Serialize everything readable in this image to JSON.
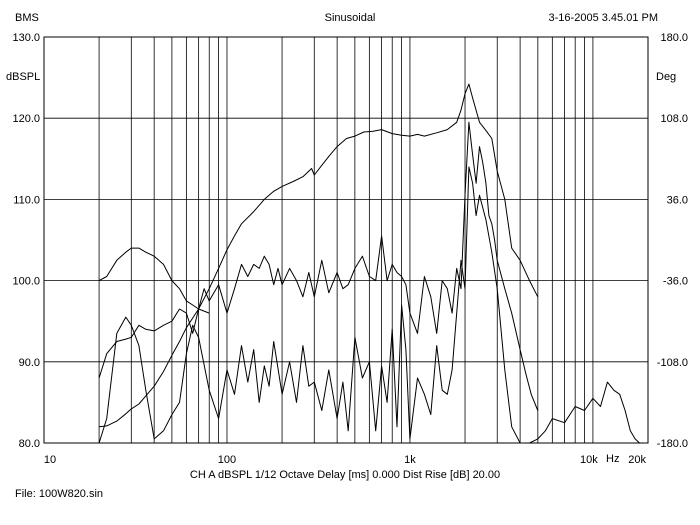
{
  "header": {
    "left": "BMS",
    "center": "Sinusoidal",
    "right": "3-16-2005 3.45.01 PM"
  },
  "footer": {
    "settings": "CH A   dBSPL   1/12 Octave   Delay [ms] 0.000   Dist Rise [dB] 20.00",
    "file": "File: 100W820.sin"
  },
  "chart_data": {
    "type": "line",
    "xscale": "log",
    "xlim": [
      10,
      20000
    ],
    "ylim": [
      80,
      130
    ],
    "ylim_right": [
      -180,
      180
    ],
    "ylabel": "dBSPL",
    "ylabel_right": "Deg",
    "x_unit": "Hz",
    "grid": true,
    "x_tick_labels": [
      {
        "value": 10,
        "label": "10"
      },
      {
        "value": 100,
        "label": "100"
      },
      {
        "value": 1000,
        "label": "1k"
      },
      {
        "value": 10000,
        "label": "10k"
      },
      {
        "value": 20000,
        "label": "20k"
      }
    ],
    "y_tick_labels": [
      "80.0",
      "90.0",
      "100.0",
      "110.0",
      "120.0",
      "130.0"
    ],
    "y_tick_values": [
      80,
      90,
      100,
      110,
      120,
      130
    ],
    "y_right_tick_labels": [
      "-180.0",
      "-108.0",
      "-36.0",
      "36.0",
      "108.0",
      "180.0"
    ],
    "y_right_tick_values": [
      -180,
      -108,
      -36,
      36,
      108,
      180
    ],
    "series": [
      {
        "key": "spl",
        "x": [
          20,
          22,
          25,
          28,
          30,
          33,
          36,
          40,
          45,
          50,
          55,
          60,
          70,
          80,
          90,
          100,
          110,
          120,
          140,
          160,
          180,
          200,
          230,
          260,
          290,
          300,
          330,
          360,
          400,
          450,
          500,
          560,
          630,
          700,
          800,
          900,
          1000,
          1100,
          1200,
          1400,
          1600,
          1800,
          1900,
          2000,
          2100,
          2200,
          2400,
          2600,
          2800,
          3000,
          3300,
          3600,
          4000,
          4500,
          5000
        ],
        "y": [
          82.0,
          82.1,
          82.7,
          83.6,
          84.2,
          84.8,
          85.8,
          87.0,
          88.8,
          90.8,
          92.5,
          94.2,
          96.5,
          99.0,
          101.5,
          103.8,
          105.5,
          107.0,
          108.5,
          110.0,
          111.0,
          111.6,
          112.2,
          112.8,
          113.8,
          113.0,
          114.2,
          115.3,
          116.5,
          117.5,
          117.8,
          118.3,
          118.4,
          118.6,
          118.1,
          117.9,
          117.8,
          118.0,
          117.8,
          118.2,
          118.6,
          119.5,
          121.0,
          123.0,
          124.2,
          122.5,
          119.5,
          118.5,
          117.5,
          113.5,
          110.0,
          104.0,
          102.5,
          100.0,
          98.0
        ]
      },
      {
        "key": "phase",
        "x": [
          20,
          22,
          25,
          28,
          30,
          33,
          36,
          40,
          45,
          50,
          55,
          60,
          65,
          70,
          80
        ],
        "y": [
          100.0,
          100.5,
          102.5,
          103.5,
          104.0,
          104.0,
          103.5,
          103.0,
          102.0,
          100.0,
          99.0,
          97.5,
          97.0,
          96.5,
          96.0
        ]
      },
      {
        "key": "h2",
        "x": [
          20,
          22,
          25,
          28,
          30,
          33,
          36,
          40,
          45,
          50,
          55,
          60,
          65,
          70,
          75,
          80,
          90,
          100,
          110,
          120,
          130,
          140,
          150,
          160,
          170,
          180,
          190,
          200,
          220,
          240,
          260,
          280,
          300,
          330,
          360,
          400,
          430,
          460,
          500,
          550,
          600,
          650,
          700,
          750,
          800,
          850,
          900,
          950,
          1000,
          1100,
          1200,
          1300,
          1400,
          1500,
          1600,
          1700,
          1800,
          1900,
          2000,
          2100,
          2200,
          2300,
          2400,
          2500,
          2600,
          2700,
          2800,
          2900,
          3000,
          3300,
          3600,
          4000,
          4300,
          4600,
          5000
        ],
        "y": [
          88.0,
          91.0,
          92.5,
          92.8,
          93.0,
          94.5,
          94.0,
          93.8,
          94.5,
          95.0,
          96.5,
          96.0,
          93.5,
          96.5,
          99.0,
          97.5,
          99.5,
          96.0,
          99.0,
          102.0,
          100.5,
          102.0,
          101.5,
          103.0,
          102.0,
          99.5,
          101.5,
          99.5,
          101.5,
          100.0,
          98.0,
          101.0,
          98.0,
          102.5,
          98.5,
          101.0,
          99.0,
          99.5,
          101.5,
          103.0,
          100.5,
          100.0,
          105.5,
          100.0,
          102.0,
          101.0,
          100.5,
          99.5,
          96.0,
          93.5,
          100.5,
          98.0,
          93.5,
          100.0,
          99.0,
          96.0,
          101.5,
          99.0,
          110.5,
          119.5,
          115.5,
          112.0,
          116.5,
          114.5,
          112.0,
          108.0,
          107.0,
          105.0,
          102.5,
          99.0,
          96.0,
          91.5,
          88.5,
          86.0,
          84.0
        ]
      },
      {
        "key": "h3",
        "x": [
          20,
          22,
          25,
          28,
          30,
          33,
          36,
          40,
          45,
          50,
          55,
          60,
          65,
          70,
          80,
          90,
          100,
          110,
          120,
          130,
          140,
          150,
          160,
          170,
          180,
          200,
          220,
          240,
          260,
          280,
          300,
          330,
          360,
          400,
          430,
          460,
          500,
          550,
          600,
          650,
          700,
          750,
          800,
          850,
          900,
          950,
          1000,
          1100,
          1200,
          1300,
          1400,
          1500,
          1600,
          1700,
          1800,
          1900,
          2000,
          2100,
          2200,
          2300,
          2400,
          2600,
          2800,
          3000,
          3300,
          3600,
          4000,
          4500,
          5000,
          5500,
          6000,
          7000,
          8000,
          9000,
          10000,
          11000,
          12000,
          13000,
          14000,
          15000,
          16000,
          17000,
          18000
        ],
        "y": [
          80.0,
          83.0,
          93.5,
          95.5,
          94.5,
          92.0,
          86.5,
          80.5,
          81.5,
          83.5,
          85.0,
          91.0,
          94.5,
          93.0,
          86.5,
          83.0,
          89.0,
          86.0,
          92.0,
          87.5,
          91.5,
          85.0,
          89.5,
          87.0,
          92.5,
          86.0,
          90.0,
          85.0,
          92.0,
          87.0,
          87.5,
          84.0,
          89.0,
          83.0,
          87.5,
          81.5,
          93.0,
          88.0,
          90.0,
          81.5,
          89.5,
          85.0,
          94.0,
          82.0,
          97.0,
          91.5,
          80.5,
          88.0,
          86.0,
          83.5,
          92.0,
          86.5,
          86.0,
          89.0,
          96.0,
          102.5,
          99.0,
          114.0,
          112.0,
          108.0,
          110.5,
          107.5,
          103.5,
          99.0,
          89.0,
          82.0,
          80.0,
          80.0,
          80.5,
          81.5,
          83.0,
          82.5,
          84.5,
          84.0,
          85.5,
          84.5,
          87.5,
          86.5,
          86.0,
          84.0,
          81.5,
          80.5,
          80.0
        ]
      }
    ]
  }
}
